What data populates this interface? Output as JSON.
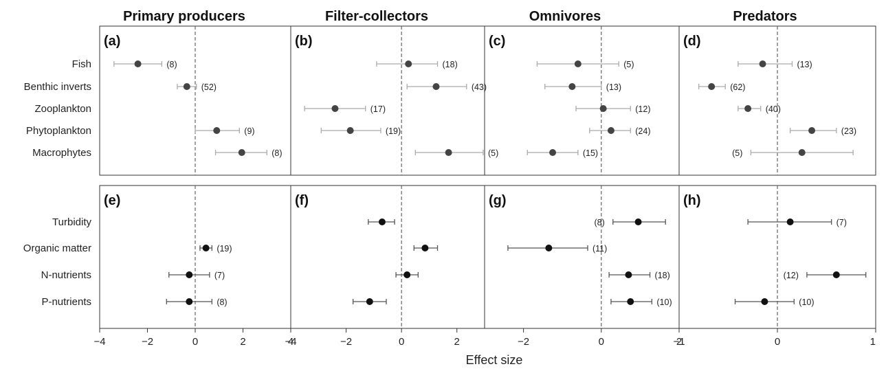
{
  "chart_data": {
    "type": "forest-plot",
    "xlabel": "Effect size",
    "column_titles": [
      "Primary producers",
      "Filter-collectors",
      "Omnivores",
      "Predators"
    ],
    "row_categories": [
      [
        "Fish",
        "Benthic inverts",
        "Zooplankton",
        "Phytoplankton",
        "Macrophytes"
      ],
      [
        "Turbidity",
        "Organic matter",
        "N-nutrients",
        "P-nutrients"
      ]
    ],
    "columns": [
      {
        "xlim": [
          -4,
          4
        ],
        "ticks": [
          -4,
          -2,
          0,
          2,
          4
        ]
      },
      {
        "xlim": [
          -4,
          3
        ],
        "ticks": [
          -4,
          -2,
          0,
          2
        ]
      },
      {
        "xlim": [
          -3,
          2
        ],
        "ticks": [
          -2,
          0,
          2
        ]
      },
      {
        "xlim": [
          -1,
          1
        ],
        "ticks": [
          -1,
          0,
          1
        ]
      }
    ],
    "panels": [
      {
        "letter": "(a)",
        "row": 0,
        "col": 0,
        "points": [
          {
            "cat": "Fish",
            "est": -2.4,
            "lo": -3.4,
            "hi": -1.4,
            "n": "(8)",
            "n_side": "right"
          },
          {
            "cat": "Benthic inverts",
            "est": -0.35,
            "lo": -0.75,
            "hi": 0.05,
            "n": "(52)",
            "n_side": "right"
          },
          {
            "cat": "Phytoplankton",
            "est": 0.9,
            "lo": 0.0,
            "hi": 1.85,
            "n": "(9)",
            "n_side": "right"
          },
          {
            "cat": "Macrophytes",
            "est": 1.95,
            "lo": 0.85,
            "hi": 3.0,
            "n": "(8)",
            "n_side": "right"
          }
        ]
      },
      {
        "letter": "(b)",
        "row": 0,
        "col": 1,
        "points": [
          {
            "cat": "Fish",
            "est": 0.25,
            "lo": -0.9,
            "hi": 1.3,
            "n": "(18)",
            "n_side": "right"
          },
          {
            "cat": "Benthic inverts",
            "est": 1.25,
            "lo": 0.2,
            "hi": 2.35,
            "n": "(43)",
            "n_side": "right"
          },
          {
            "cat": "Zooplankton",
            "est": -2.4,
            "lo": -3.5,
            "hi": -1.3,
            "n": "(17)",
            "n_side": "right"
          },
          {
            "cat": "Phytoplankton",
            "est": -1.85,
            "lo": -2.9,
            "hi": -0.75,
            "n": "(19)",
            "n_side": "right"
          },
          {
            "cat": "Macrophytes",
            "est": 1.7,
            "lo": 0.5,
            "hi": 2.95,
            "n": "(5)",
            "n_side": "right"
          }
        ]
      },
      {
        "letter": "(c)",
        "row": 0,
        "col": 2,
        "points": [
          {
            "cat": "Fish",
            "est": -0.6,
            "lo": -1.65,
            "hi": 0.45,
            "n": "(5)",
            "n_side": "right"
          },
          {
            "cat": "Benthic inverts",
            "est": -0.75,
            "lo": -1.45,
            "hi": 0.0,
            "n": "(13)",
            "n_side": "right"
          },
          {
            "cat": "Zooplankton",
            "est": 0.05,
            "lo": -0.65,
            "hi": 0.75,
            "n": "(12)",
            "n_side": "right"
          },
          {
            "cat": "Phytoplankton",
            "est": 0.25,
            "lo": -0.3,
            "hi": 0.75,
            "n": "(24)",
            "n_side": "right"
          },
          {
            "cat": "Macrophytes",
            "est": -1.25,
            "lo": -1.9,
            "hi": -0.6,
            "n": "(15)",
            "n_side": "right"
          }
        ]
      },
      {
        "letter": "(d)",
        "row": 0,
        "col": 3,
        "points": [
          {
            "cat": "Fish",
            "est": -0.15,
            "lo": -0.4,
            "hi": 0.15,
            "n": "(13)",
            "n_side": "right"
          },
          {
            "cat": "Benthic inverts",
            "est": -0.67,
            "lo": -0.8,
            "hi": -0.53,
            "n": "(62)",
            "n_side": "right"
          },
          {
            "cat": "Zooplankton",
            "est": -0.3,
            "lo": -0.4,
            "hi": -0.17,
            "n": "(40)",
            "n_side": "right"
          },
          {
            "cat": "Phytoplankton",
            "est": 0.35,
            "lo": 0.13,
            "hi": 0.6,
            "n": "(23)",
            "n_side": "right"
          },
          {
            "cat": "Macrophytes",
            "est": 0.25,
            "lo": -0.27,
            "hi": 0.77,
            "n": "(5)",
            "n_side": "left"
          }
        ]
      },
      {
        "letter": "(e)",
        "row": 1,
        "col": 0,
        "points": [
          {
            "cat": "Organic matter",
            "est": 0.45,
            "lo": 0.2,
            "hi": 0.7,
            "n": "(19)",
            "n_side": "right"
          },
          {
            "cat": "N-nutrients",
            "est": -0.25,
            "lo": -1.1,
            "hi": 0.6,
            "n": "(7)",
            "n_side": "right"
          },
          {
            "cat": "P-nutrients",
            "est": -0.25,
            "lo": -1.2,
            "hi": 0.7,
            "n": "(8)",
            "n_side": "right"
          }
        ]
      },
      {
        "letter": "(f)",
        "row": 1,
        "col": 1,
        "points": [
          {
            "cat": "Turbidity",
            "est": -0.7,
            "lo": -1.2,
            "hi": -0.25,
            "n": "",
            "n_side": "right"
          },
          {
            "cat": "Organic matter",
            "est": 0.85,
            "lo": 0.45,
            "hi": 1.3,
            "n": "",
            "n_side": "right"
          },
          {
            "cat": "N-nutrients",
            "est": 0.2,
            "lo": -0.2,
            "hi": 0.6,
            "n": "",
            "n_side": "right"
          },
          {
            "cat": "P-nutrients",
            "est": -1.15,
            "lo": -1.75,
            "hi": -0.55,
            "n": "",
            "n_side": "right"
          }
        ]
      },
      {
        "letter": "(g)",
        "row": 1,
        "col": 2,
        "points": [
          {
            "cat": "Turbidity",
            "est": 0.95,
            "lo": 0.3,
            "hi": 1.65,
            "n": "(8)",
            "n_side": "left"
          },
          {
            "cat": "Organic matter",
            "est": -1.35,
            "lo": -2.4,
            "hi": -0.35,
            "n": "(11)",
            "n_side": "right"
          },
          {
            "cat": "N-nutrients",
            "est": 0.7,
            "lo": 0.2,
            "hi": 1.25,
            "n": "(18)",
            "n_side": "right"
          },
          {
            "cat": "P-nutrients",
            "est": 0.75,
            "lo": 0.25,
            "hi": 1.3,
            "n": "(10)",
            "n_side": "right"
          }
        ]
      },
      {
        "letter": "(h)",
        "row": 1,
        "col": 3,
        "points": [
          {
            "cat": "Turbidity",
            "est": 0.13,
            "lo": -0.3,
            "hi": 0.55,
            "n": "(7)",
            "n_side": "right"
          },
          {
            "cat": "N-nutrients",
            "est": 0.6,
            "lo": 0.3,
            "hi": 0.9,
            "n": "(12)",
            "n_side": "left"
          },
          {
            "cat": "P-nutrients",
            "est": -0.13,
            "lo": -0.43,
            "hi": 0.17,
            "n": "(10)",
            "n_side": "right"
          }
        ]
      }
    ],
    "colors": {
      "point_top": "#444444",
      "point_bottom": "#111111",
      "errbar_top": "#aaaaaa",
      "errbar_bottom": "#555555"
    }
  }
}
